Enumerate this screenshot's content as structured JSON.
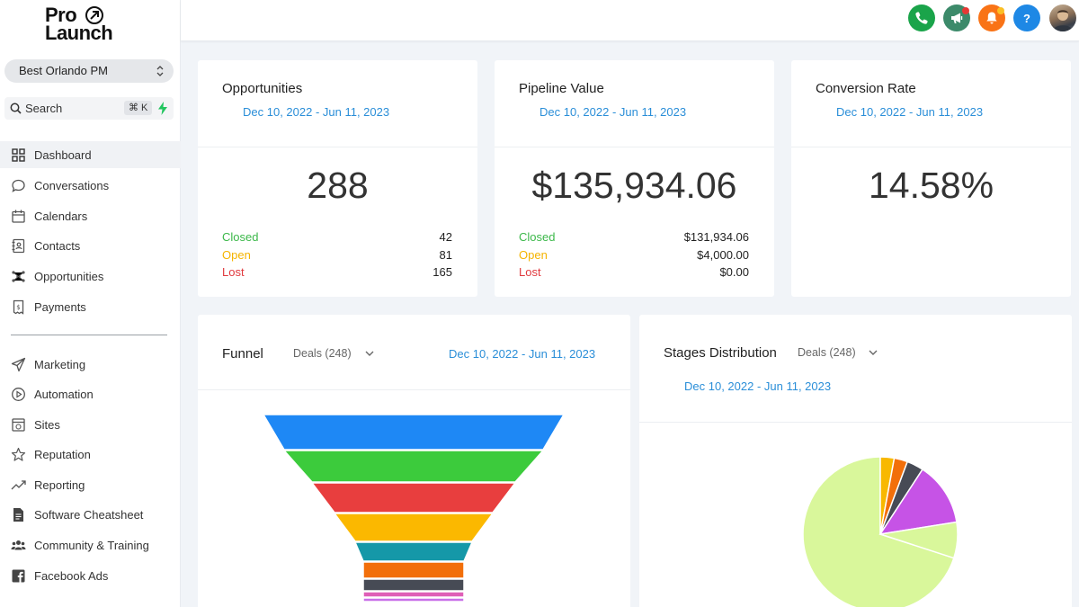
{
  "brand": {
    "line1": "Pro",
    "line2": "Launch"
  },
  "account": {
    "name": "Best Orlando PM"
  },
  "search": {
    "label": "Search",
    "shortcut": "⌘ K"
  },
  "nav": {
    "primary": [
      {
        "label": "Dashboard",
        "icon": "dashboard-icon",
        "active": true
      },
      {
        "label": "Conversations",
        "icon": "chat-icon"
      },
      {
        "label": "Calendars",
        "icon": "calendar-icon"
      },
      {
        "label": "Contacts",
        "icon": "contacts-icon"
      },
      {
        "label": "Opportunities",
        "icon": "opportunities-icon"
      },
      {
        "label": "Payments",
        "icon": "payments-icon"
      }
    ],
    "secondary": [
      {
        "label": "Marketing",
        "icon": "send-icon"
      },
      {
        "label": "Automation",
        "icon": "play-icon"
      },
      {
        "label": "Sites",
        "icon": "sites-icon"
      },
      {
        "label": "Reputation",
        "icon": "star-icon"
      },
      {
        "label": "Reporting",
        "icon": "trend-icon"
      },
      {
        "label": "Software Cheatsheet",
        "icon": "document-icon"
      },
      {
        "label": "Community & Training",
        "icon": "users-icon"
      },
      {
        "label": "Facebook Ads",
        "icon": "facebook-icon"
      }
    ]
  },
  "topbar": {
    "buttons": [
      {
        "name": "phone",
        "color": "#1aa44a"
      },
      {
        "name": "announcements",
        "color": "#3c8a6a"
      },
      {
        "name": "notifications",
        "color": "#f97316"
      },
      {
        "name": "help",
        "color": "#1e88e5"
      }
    ]
  },
  "opportunities": {
    "title": "Opportunities",
    "date": "Dec 10, 2022 - Jun 11, 2023",
    "total": "288",
    "rows": [
      {
        "label": "Closed",
        "value": "42"
      },
      {
        "label": "Open",
        "value": "81"
      },
      {
        "label": "Lost",
        "value": "165"
      }
    ]
  },
  "pipeline": {
    "title": "Pipeline Value",
    "date": "Dec 10, 2022 - Jun 11, 2023",
    "total": "$135,934.06",
    "rows": [
      {
        "label": "Closed",
        "value": "$131,934.06"
      },
      {
        "label": "Open",
        "value": "$4,000.00"
      },
      {
        "label": "Lost",
        "value": "$0.00"
      }
    ]
  },
  "conversion": {
    "title": "Conversion Rate",
    "date": "Dec 10, 2022 - Jun 11, 2023",
    "total": "14.58%"
  },
  "funnel": {
    "title": "Funnel",
    "filter": "Deals (248)",
    "date": "Dec 10, 2022 - Jun 11, 2023"
  },
  "stages": {
    "title": "Stages Distribution",
    "filter": "Deals (248)",
    "date": "Dec 10, 2022 - Jun 11, 2023"
  },
  "chart_data": [
    {
      "type": "funnel",
      "stage_count": 9,
      "colors": [
        "#1e88f5",
        "#3ccb3c",
        "#e83e3e",
        "#fbb800",
        "#1598a8",
        "#f26f0a",
        "#474b55",
        "#df5fb7",
        "#c970e8"
      ]
    },
    {
      "type": "pie",
      "slices": [
        {
          "value": 70.0,
          "color": "#d9f79b"
        },
        {
          "value": 2.9,
          "color": "#f8b800"
        },
        {
          "value": 2.8,
          "color": "#f26f0a"
        },
        {
          "value": 3.5,
          "color": "#474b55"
        },
        {
          "value": 13.3,
          "color": "#c653e6"
        },
        {
          "value": 7.5,
          "color": "#d9f79b"
        }
      ]
    }
  ]
}
